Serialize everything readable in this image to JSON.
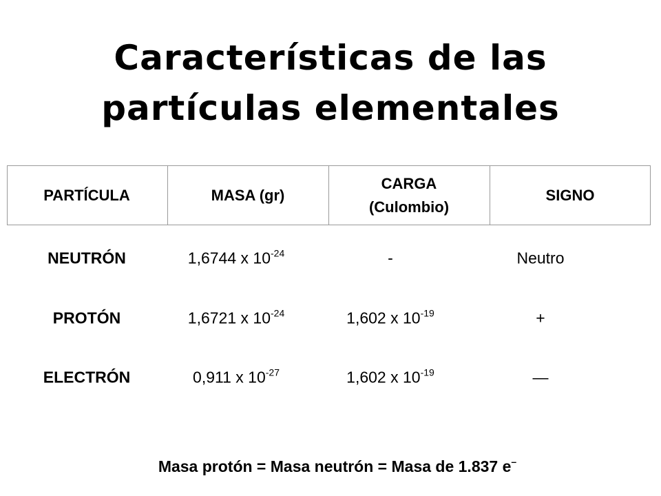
{
  "title": {
    "line1": "Características de las",
    "line2": "partículas elementales"
  },
  "table": {
    "header": [
      "PARTÍCULA",
      "MASA (gr)",
      "CARGA (Culombio)",
      "SIGNO"
    ],
    "rows": [
      [
        "NEUTRÓN",
        {
          "base": "1,6744 x 10",
          "exp": "-24"
        },
        "-",
        "Neutro"
      ],
      [
        "PROTÓN",
        {
          "base": "1,6721 x 10",
          "exp": "-24"
        },
        {
          "base": "1,602 x 10",
          "exp": "-19"
        },
        "+"
      ],
      [
        "ELECTRÓN",
        {
          "base": "0,911 x 10",
          "exp": "-27"
        },
        {
          "base": "1,602 x 10",
          "exp": "-19"
        },
        "—"
      ]
    ]
  },
  "footer": {
    "base": "Masa protón = Masa neutrón = Masa de 1.837 e",
    "exp": "–"
  }
}
